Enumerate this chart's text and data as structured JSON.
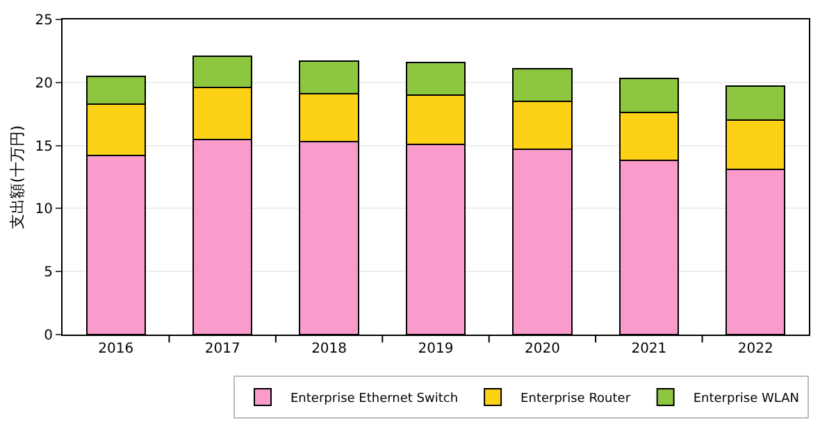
{
  "chart_data": {
    "type": "bar",
    "stacked": true,
    "ylabel": "支出額(十万円)",
    "categories": [
      "2016",
      "2017",
      "2018",
      "2019",
      "2020",
      "2021",
      "2022"
    ],
    "series": [
      {
        "name": "Enterprise Ethernet Switch",
        "color": "#f99bcb",
        "values": [
          14.2,
          15.5,
          15.3,
          15.1,
          14.7,
          13.8,
          13.1
        ]
      },
      {
        "name": "Enterprise Router",
        "color": "#fcd116",
        "values": [
          4.1,
          4.1,
          3.8,
          3.9,
          3.8,
          3.8,
          3.9
        ]
      },
      {
        "name": "Enterprise WLAN",
        "color": "#8dc63f",
        "values": [
          2.2,
          2.5,
          2.6,
          2.6,
          2.6,
          2.7,
          2.7
        ]
      }
    ],
    "ylim": [
      0,
      25
    ],
    "yticks": [
      0,
      5,
      10,
      15,
      20,
      25
    ],
    "grid": "y",
    "legend": "bottom right"
  }
}
